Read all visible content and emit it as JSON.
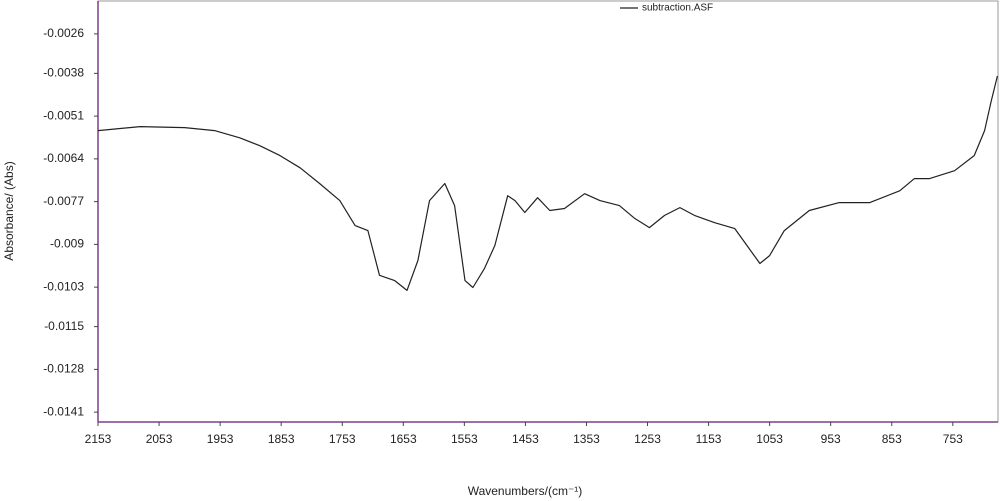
{
  "chart_data": {
    "type": "line",
    "xlabel": "Wavenumbers/(cm⁻¹)",
    "ylabel": "Absorbance/ (Abs)",
    "x": [
      2153,
      2084,
      2011,
      1962,
      1921,
      1888,
      1855,
      1822,
      1790,
      1757,
      1732,
      1711,
      1692,
      1667,
      1647,
      1629,
      1610,
      1585,
      1569,
      1552,
      1539,
      1520,
      1503,
      1482,
      1470,
      1454,
      1433,
      1413,
      1389,
      1356,
      1331,
      1299,
      1274,
      1250,
      1225,
      1200,
      1176,
      1143,
      1110,
      1069,
      1053,
      1029,
      988,
      939,
      889,
      840,
      816,
      791,
      750,
      718,
      701,
      690,
      680
    ],
    "series": [
      {
        "name": "subtraction.ASF",
        "color": "#222222",
        "values": [
          -0.00554,
          -0.00542,
          -0.00545,
          -0.00554,
          -0.00576,
          -0.006,
          -0.0063,
          -0.00667,
          -0.00715,
          -0.00767,
          -0.00843,
          -0.00858,
          -0.00994,
          -0.0101,
          -0.0104,
          -0.00949,
          -0.00767,
          -0.00715,
          -0.00782,
          -0.0101,
          -0.01031,
          -0.00973,
          -0.00903,
          -0.00752,
          -0.00767,
          -0.00803,
          -0.00758,
          -0.00797,
          -0.00791,
          -0.00746,
          -0.00767,
          -0.00782,
          -0.00821,
          -0.00849,
          -0.00812,
          -0.00788,
          -0.00812,
          -0.00834,
          -0.00852,
          -0.00958,
          -0.00934,
          -0.00858,
          -0.00797,
          -0.00773,
          -0.00773,
          -0.00737,
          -0.007,
          -0.007,
          -0.00676,
          -0.0063,
          -0.00554,
          -0.00463,
          -0.00388
        ]
      }
    ],
    "xlim": [
      2153,
      679
    ],
    "xticks": [
      2153,
      2053,
      1953,
      1853,
      1753,
      1653,
      1553,
      1453,
      1353,
      1253,
      1153,
      1053,
      953,
      853,
      753
    ],
    "ylim": [
      -0.0016,
      -0.0144
    ],
    "yticks": [
      -0.0026,
      -0.0038,
      -0.0051,
      -0.0064,
      -0.0077,
      -0.009,
      -0.0103,
      -0.0115,
      -0.0128,
      -0.0141
    ],
    "legend": "top"
  }
}
